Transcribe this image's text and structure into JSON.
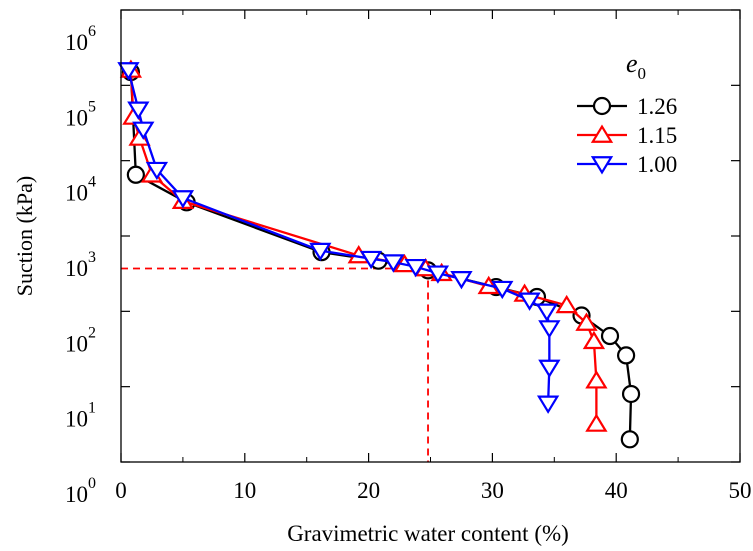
{
  "chart_data": {
    "type": "line",
    "xlabel": "Gravimetric water content (%)",
    "ylabel": "Suction (kPa)",
    "xlim": [
      0,
      50
    ],
    "ylim": [
      1,
      1000000
    ],
    "yscale": "log",
    "x_ticks": [
      "0",
      "10",
      "20",
      "30",
      "40",
      "50"
    ],
    "y_ticks": [
      {
        "base": "10",
        "exp": "0"
      },
      {
        "base": "10",
        "exp": "1"
      },
      {
        "base": "10",
        "exp": "2"
      },
      {
        "base": "10",
        "exp": "3"
      },
      {
        "base": "10",
        "exp": "4"
      },
      {
        "base": "10",
        "exp": "5"
      },
      {
        "base": "10",
        "exp": "6"
      }
    ],
    "legend": {
      "title_base": "e",
      "title_sub": "0",
      "placement": "top-right"
    },
    "series": [
      {
        "name": "1.26",
        "color": "#000000",
        "marker": "circle",
        "x": [
          0.8,
          1.2,
          5.3,
          16.2,
          20.8,
          24.8,
          30.3,
          33.6,
          37.2,
          39.5,
          40.8,
          41.2,
          41.1
        ],
        "y": [
          150000,
          6500,
          2800,
          610,
          470,
          350,
          210,
          155,
          88,
          47,
          26,
          8,
          2
        ]
      },
      {
        "name": "1.15",
        "color": "#ff0000",
        "marker": "triangle-up",
        "x": [
          0.8,
          1.0,
          1.5,
          2.5,
          5.0,
          19.2,
          22.9,
          24.6,
          25.9,
          29.7,
          32.6,
          36.0,
          37.6,
          38.2,
          38.4,
          38.4
        ],
        "y": [
          160000,
          38000,
          20000,
          6500,
          2900,
          550,
          420,
          370,
          320,
          215,
          170,
          120,
          70,
          40,
          12,
          3.2
        ]
      },
      {
        "name": "1.00",
        "color": "#0000ff",
        "marker": "triangle-down",
        "x": [
          0.6,
          1.4,
          1.8,
          2.9,
          5.0,
          16.1,
          20.2,
          22.0,
          23.8,
          25.6,
          27.5,
          30.8,
          33.0,
          34.4,
          34.6,
          34.6,
          34.5
        ],
        "y": [
          160000,
          48000,
          26000,
          7600,
          3200,
          640,
          500,
          450,
          390,
          320,
          270,
          200,
          140,
          100,
          60,
          18,
          6
        ]
      }
    ],
    "reference_lines": [
      {
        "type": "horizontal",
        "y": 370,
        "x_from": 0,
        "x_to": 24.8,
        "color": "#ff0000",
        "style": "dashed"
      },
      {
        "type": "vertical",
        "x": 24.8,
        "y_from": 1,
        "y_to": 370,
        "color": "#ff0000",
        "style": "dashed"
      }
    ],
    "grid": false
  }
}
